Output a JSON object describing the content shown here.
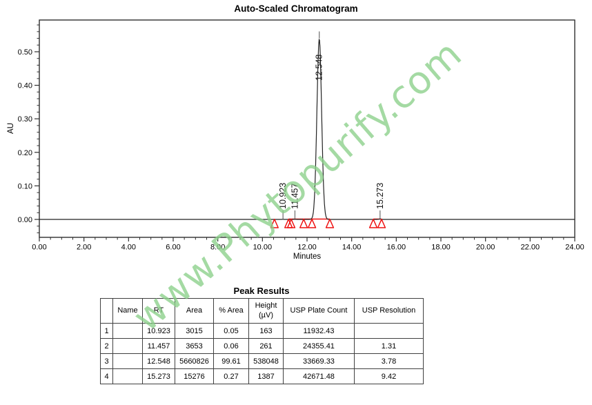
{
  "chart_data": {
    "type": "line",
    "title": "Auto-Scaled Chromatogram",
    "xlabel": "Minutes",
    "ylabel": "AU",
    "xlim": [
      0,
      24
    ],
    "ylim": [
      -0.053,
      0.595
    ],
    "x_major_tick_step": 2,
    "x_minor_tick_step": 0.5,
    "y_major_tick_step": 0.1,
    "y_minor_tick_step": 0.02,
    "x_tick_labels": [
      "0.00",
      "2.00",
      "4.00",
      "6.00",
      "8.00",
      "10.00",
      "12.00",
      "14.00",
      "16.00",
      "18.00",
      "20.00",
      "22.00",
      "24.00"
    ],
    "y_tick_labels": [
      "0.00",
      "0.10",
      "0.20",
      "0.30",
      "0.40",
      "0.50"
    ],
    "baseline_au": 0.0,
    "trace_color": "#222222",
    "grid": false,
    "peaks": [
      {
        "rt": 10.923,
        "height_au": 0.000163,
        "sigma_min": 0.05,
        "label": "10.923",
        "label_style": "baseline"
      },
      {
        "rt": 11.457,
        "height_au": 0.000261,
        "sigma_min": 0.05,
        "label": "11.457",
        "label_style": "baseline"
      },
      {
        "rt": 12.548,
        "height_au": 0.538,
        "sigma_min": 0.105,
        "label": "12.548",
        "label_style": "apex"
      },
      {
        "rt": 15.273,
        "height_au": 0.001387,
        "sigma_min": 0.05,
        "label": "15.273",
        "label_style": "baseline"
      }
    ],
    "integration": {
      "color": "#ee1111",
      "triangle_marks_min": [
        10.54,
        11.17,
        11.29,
        11.85,
        12.22,
        13.02,
        14.97,
        15.34
      ],
      "baseline_segments_min": [
        [
          11.17,
          13.02
        ],
        [
          14.97,
          15.34
        ]
      ]
    }
  },
  "watermark": {
    "text": "www.Phytopurify.com",
    "color": "#8bd08a"
  },
  "table": {
    "title": "Peak Results",
    "columns": [
      "",
      "Name",
      "RT",
      "Area",
      "% Area",
      "Height (µV)",
      "USP Plate Count",
      "USP Resolution"
    ],
    "rows": [
      [
        "1",
        "",
        "10.923",
        "3015",
        "0.05",
        "163",
        "11932.43",
        ""
      ],
      [
        "2",
        "",
        "11.457",
        "3653",
        "0.06",
        "261",
        "24355.41",
        "1.31"
      ],
      [
        "3",
        "",
        "12.548",
        "5660826",
        "99.61",
        "538048",
        "33669.33",
        "3.78"
      ],
      [
        "4",
        "",
        "15.273",
        "15276",
        "0.27",
        "1387",
        "42671.48",
        "9.42"
      ]
    ]
  }
}
